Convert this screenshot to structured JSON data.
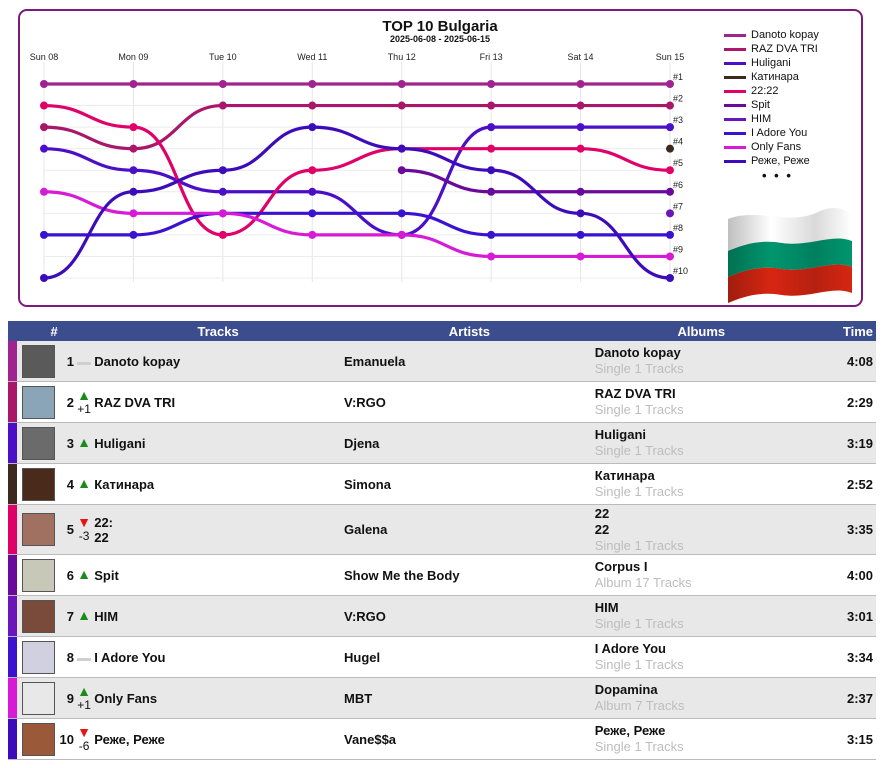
{
  "chart": {
    "title": "TOP 10 Bulgaria",
    "subtitle": "2025-06-08 - 2025-06-15",
    "days": [
      "Sun 08",
      "Mon 09",
      "Tue 10",
      "Wed 11",
      "Thu 12",
      "Fri 13",
      "Sat 14",
      "Sun 15"
    ],
    "rank_labels": [
      "#1",
      "#2",
      "#3",
      "#4",
      "#5",
      "#6",
      "#7",
      "#8",
      "#9",
      "#10"
    ],
    "more_indicator": "• • •",
    "flag_colors": [
      "#ffffff",
      "#00966e",
      "#d62612"
    ]
  },
  "chart_data": {
    "type": "line",
    "title": "TOP 10 Bulgaria",
    "subtitle": "2025-06-08 - 2025-06-15",
    "x": [
      "Sun 08",
      "Mon 09",
      "Tue 10",
      "Wed 11",
      "Thu 12",
      "Fri 13",
      "Sat 14",
      "Sun 15"
    ],
    "y_axis": "rank, #1 at top, #10 at bottom",
    "ylim": [
      1,
      10
    ],
    "legend_position": "right",
    "grid": true,
    "series": [
      {
        "name": "Danoto kopay",
        "color": "#a0248f",
        "values": [
          1,
          1,
          1,
          1,
          1,
          1,
          1,
          1
        ]
      },
      {
        "name": "RAZ DVA TRI",
        "color": "#a8176a",
        "values": [
          3,
          4,
          2,
          2,
          2,
          2,
          2,
          2
        ]
      },
      {
        "name": "Huligani",
        "color": "#4b0fc8",
        "values": [
          4,
          5,
          6,
          6,
          8,
          3,
          3,
          3
        ]
      },
      {
        "name": "Катинара",
        "color": "#3d2a1f",
        "values": [
          null,
          null,
          null,
          null,
          null,
          null,
          null,
          4
        ]
      },
      {
        "name": "22:22",
        "color": "#e0006a",
        "values": [
          2,
          3,
          8,
          5,
          4,
          4,
          4,
          5
        ]
      },
      {
        "name": "Spit",
        "color": "#6a0a9a",
        "values": [
          null,
          null,
          null,
          null,
          5,
          6,
          6,
          6
        ]
      },
      {
        "name": "HIM",
        "color": "#6a16b8",
        "values": [
          null,
          null,
          null,
          null,
          null,
          null,
          null,
          7
        ]
      },
      {
        "name": "I Adore You",
        "color": "#3a12d0",
        "values": [
          8,
          8,
          7,
          7,
          7,
          8,
          8,
          8
        ]
      },
      {
        "name": "Only Fans",
        "color": "#d61ad6",
        "values": [
          6,
          7,
          7,
          8,
          8,
          9,
          9,
          9
        ]
      },
      {
        "name": "Реже, Реже",
        "color": "#3d0cba",
        "values": [
          10,
          6,
          5,
          3,
          4,
          5,
          7,
          10
        ]
      }
    ]
  },
  "table": {
    "headers": {
      "num": "#",
      "tracks": "Tracks",
      "artists": "Artists",
      "albums": "Albums",
      "time": "Time"
    },
    "rows": [
      {
        "pos": "1",
        "trend": "same",
        "delta": "",
        "track": "Danoto kopay",
        "artist": "Emanuela",
        "album": "Danoto kopay",
        "album_meta": "Single 1 Tracks",
        "time": "4:08",
        "color": "#a0248f",
        "thumb": "#5a5a5a"
      },
      {
        "pos": "2",
        "trend": "up",
        "delta": "+1",
        "track": "RAZ DVA TRI",
        "artist": "V:RGO",
        "album": "RAZ DVA TRI",
        "album_meta": "Single 1 Tracks",
        "time": "2:29",
        "color": "#a8176a",
        "thumb": "#8aa5b8"
      },
      {
        "pos": "3",
        "trend": "up",
        "delta": "",
        "track": "Huligani",
        "artist": "Djena",
        "album": "Huligani",
        "album_meta": "Single 1 Tracks",
        "time": "3:19",
        "color": "#4b0fc8",
        "thumb": "#6b6b6b"
      },
      {
        "pos": "4",
        "trend": "up",
        "delta": "",
        "track": "Катинара",
        "artist": "Simona",
        "album": "Катинара",
        "album_meta": "Single 1 Tracks",
        "time": "2:52",
        "color": "#3d2a1f",
        "thumb": "#4a2a1a"
      },
      {
        "pos": "5",
        "trend": "down",
        "delta": "-3",
        "track": "22:",
        "track2": "22",
        "artist": "Galena",
        "album": "22",
        "album2": "22",
        "album_meta": "Single 1 Tracks",
        "time": "3:35",
        "color": "#e0006a",
        "thumb": "#a07060"
      },
      {
        "pos": "6",
        "trend": "up",
        "delta": "",
        "track": "Spit",
        "artist": "Show Me the Body",
        "album": "Corpus I",
        "album_meta": "Album 17 Tracks",
        "time": "4:00",
        "color": "#6a0a9a",
        "thumb": "#c8c8b8"
      },
      {
        "pos": "7",
        "trend": "up",
        "delta": "",
        "track": "HIM",
        "artist": "V:RGO",
        "album": "HIM",
        "album_meta": "Single 1 Tracks",
        "time": "3:01",
        "color": "#6a16b8",
        "thumb": "#7a4a3a"
      },
      {
        "pos": "8",
        "trend": "same",
        "delta": "",
        "track": "I Adore You",
        "artist": "Hugel",
        "album": "I Adore You",
        "album_meta": "Single 1 Tracks",
        "time": "3:34",
        "color": "#3a12d0",
        "thumb": "#d0d0e0"
      },
      {
        "pos": "9",
        "trend": "up",
        "delta": "+1",
        "track": "Only Fans",
        "artist": "MBT",
        "album": "Dopamina",
        "album_meta": "Album 7 Tracks",
        "time": "2:37",
        "color": "#d61ad6",
        "thumb": "#e8e8e8"
      },
      {
        "pos": "10",
        "trend": "down",
        "delta": "-6",
        "track": "Реже, Реже",
        "artist": "Vane$$a",
        "album": "Реже, Реже",
        "album_meta": "Single 1 Tracks",
        "time": "3:15",
        "color": "#3d0cba",
        "thumb": "#9a5a3a"
      }
    ]
  }
}
